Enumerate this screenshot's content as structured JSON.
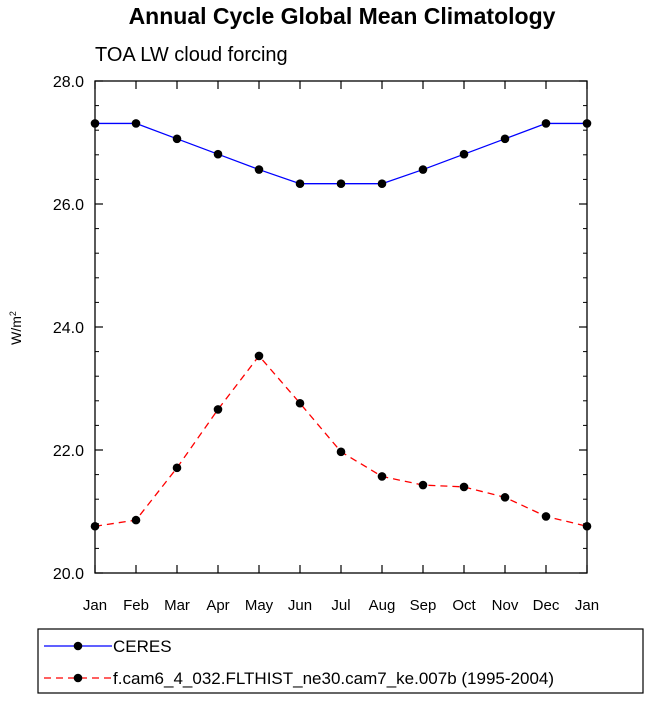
{
  "chart_data": {
    "type": "line",
    "title": "Annual Cycle Global Mean Climatology",
    "subtitle": "TOA LW cloud forcing",
    "ylabel": "W/m",
    "ylabel_superscript": "2",
    "xlabel": "",
    "categories": [
      "Jan",
      "Feb",
      "Mar",
      "Apr",
      "May",
      "Jun",
      "Jul",
      "Aug",
      "Sep",
      "Oct",
      "Nov",
      "Dec",
      "Jan"
    ],
    "ylim": [
      20.0,
      28.0
    ],
    "yticks": [
      "20.0",
      "22.0",
      "24.0",
      "26.0",
      "28.0"
    ],
    "grid": false,
    "legend_position": "bottom",
    "series": [
      {
        "name": "CERES",
        "color": "#0000ff",
        "dash": "solid",
        "values": [
          27.31,
          27.31,
          27.06,
          26.81,
          26.56,
          26.33,
          26.33,
          26.33,
          26.56,
          26.81,
          27.06,
          27.31,
          27.31
        ]
      },
      {
        "name": "f.cam6_4_032.FLTHIST_ne30.cam7_ke.007b (1995-2004)",
        "color": "#ff0000",
        "dash": "dashed",
        "values": [
          20.76,
          20.86,
          21.71,
          22.66,
          23.53,
          22.76,
          21.97,
          21.57,
          21.43,
          21.4,
          21.23,
          20.92,
          20.76
        ]
      }
    ]
  }
}
